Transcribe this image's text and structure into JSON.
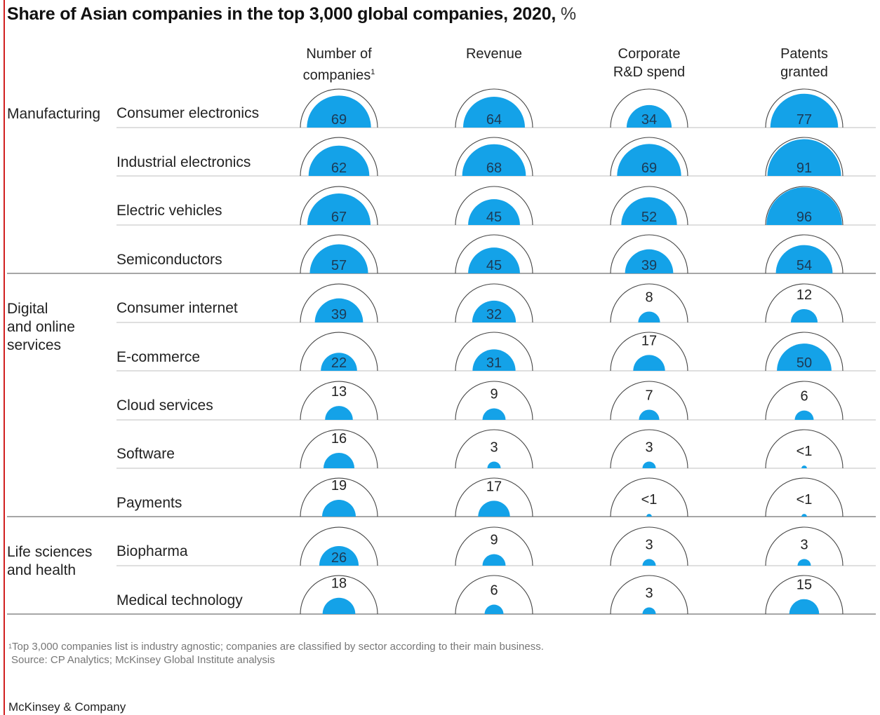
{
  "title": "Share of Asian companies in the top 3,000 global companies, 2020,",
  "title_unit": "%",
  "columns": [
    {
      "line1": "Number of",
      "line2": "companies",
      "sup": "1"
    },
    {
      "line1": "",
      "line2": "Revenue",
      "sup": ""
    },
    {
      "line1": "Corporate",
      "line2": "R&D spend",
      "sup": ""
    },
    {
      "line1": "Patents",
      "line2": "granted",
      "sup": ""
    }
  ],
  "groups": [
    {
      "label_lines": [
        "Manufacturing"
      ]
    },
    {
      "label_lines": [
        "Digital",
        "and online",
        "services"
      ]
    },
    {
      "label_lines": [
        "Life sciences",
        "and health"
      ]
    }
  ],
  "footnote": {
    "mark": "1",
    "text": "Top 3,000 companies list is industry agnostic; companies are classified by sector according to their main business."
  },
  "source": "Source: CP Analytics; McKinsey Global Institute analysis",
  "brand": "McKinsey & Company",
  "colors": {
    "fill": "#14a2e8",
    "outline": "#444444",
    "rule": "#cccccc",
    "group_rule": "#888888",
    "accent_border": "#d11f1f"
  },
  "chart_data": {
    "type": "table",
    "title": "Share of Asian companies in the top 3,000 global companies, 2020, %",
    "unit": "%",
    "columns": [
      "Number of companies",
      "Revenue",
      "Corporate R&D spend",
      "Patents granted"
    ],
    "rows": [
      {
        "group": "Manufacturing",
        "name": "Consumer electronics",
        "values": [
          69,
          64,
          34,
          77
        ],
        "labels": [
          "69",
          "64",
          "34",
          "77"
        ]
      },
      {
        "group": "Manufacturing",
        "name": "Industrial electronics",
        "values": [
          62,
          68,
          69,
          91
        ],
        "labels": [
          "62",
          "68",
          "69",
          "91"
        ]
      },
      {
        "group": "Manufacturing",
        "name": "Electric vehicles",
        "values": [
          67,
          45,
          52,
          96
        ],
        "labels": [
          "67",
          "45",
          "52",
          "96"
        ]
      },
      {
        "group": "Manufacturing",
        "name": "Semiconductors",
        "values": [
          57,
          45,
          39,
          54
        ],
        "labels": [
          "57",
          "45",
          "39",
          "54"
        ]
      },
      {
        "group": "Digital and online services",
        "name": "Consumer internet",
        "values": [
          39,
          32,
          8,
          12
        ],
        "labels": [
          "39",
          "32",
          "8",
          "12"
        ]
      },
      {
        "group": "Digital and online services",
        "name": "E-commerce",
        "values": [
          22,
          31,
          17,
          50
        ],
        "labels": [
          "22",
          "31",
          "17",
          "50"
        ]
      },
      {
        "group": "Digital and online services",
        "name": "Cloud services",
        "values": [
          13,
          9,
          7,
          6
        ],
        "labels": [
          "13",
          "9",
          "7",
          "6"
        ]
      },
      {
        "group": "Digital and online services",
        "name": "Software",
        "values": [
          16,
          3,
          3,
          0.5
        ],
        "labels": [
          "16",
          "3",
          "3",
          "<1"
        ]
      },
      {
        "group": "Digital and online services",
        "name": "Payments",
        "values": [
          19,
          17,
          0.5,
          0.5
        ],
        "labels": [
          "19",
          "17",
          "<1",
          "<1"
        ]
      },
      {
        "group": "Life sciences and health",
        "name": "Biopharma",
        "values": [
          26,
          9,
          3,
          3
        ],
        "labels": [
          "26",
          "9",
          "3",
          "3"
        ]
      },
      {
        "group": "Life sciences and health",
        "name": "Medical technology",
        "values": [
          18,
          6,
          3,
          15
        ],
        "labels": [
          "18",
          "6",
          "3",
          "15"
        ]
      }
    ]
  }
}
